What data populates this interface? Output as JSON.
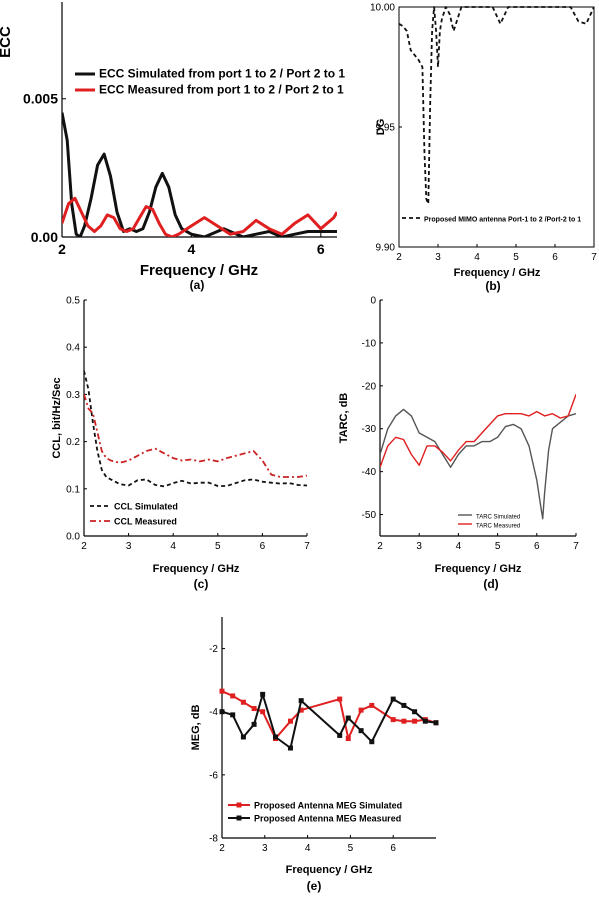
{
  "colors": {
    "black": "#111111",
    "red": "#e02020",
    "gray": "#555555",
    "dashred": "#cc2222"
  },
  "panels": {
    "a": {
      "label": "(a)"
    },
    "b": {
      "label": "(b)"
    },
    "c": {
      "label": "(c)"
    },
    "d": {
      "label": "(d)"
    },
    "e": {
      "label": "(e)"
    }
  },
  "chart_data": [
    {
      "type": "line",
      "ylabel": "ECC",
      "xlabel": "Frequency / GHz",
      "xlim": [
        2,
        6.25
      ],
      "ylim": [
        0,
        0.0085
      ],
      "xticks": [
        "2",
        "4",
        "6"
      ],
      "yticks": [
        "0.00",
        "0.005"
      ],
      "legend_placement": "top-right",
      "series": [
        {
          "name": "ECC Simulated from port 1 to 2 / Port 2 to 1",
          "color": "black",
          "x": [
            2.0,
            2.08,
            2.15,
            2.22,
            2.28,
            2.35,
            2.45,
            2.55,
            2.65,
            2.75,
            2.85,
            2.95,
            3.05,
            3.15,
            3.25,
            3.35,
            3.45,
            3.55,
            3.65,
            3.75,
            3.85,
            4.0,
            4.2,
            4.4,
            4.5,
            4.6,
            4.8,
            5.0,
            5.2,
            5.4,
            5.6,
            5.8,
            6.0,
            6.25
          ],
          "y": [
            0.0045,
            0.0035,
            0.0012,
            0.0001,
            0.0,
            0.0004,
            0.0014,
            0.0026,
            0.003,
            0.0022,
            0.0009,
            0.0002,
            0.0003,
            0.0002,
            0.0003,
            0.0009,
            0.0018,
            0.0023,
            0.0018,
            0.0008,
            0.0003,
            0.0001,
            0.0,
            0.0002,
            0.0003,
            0.0002,
            0.0,
            0.0001,
            0.0002,
            0.0,
            0.0001,
            0.0002,
            0.0002,
            0.0002
          ]
        },
        {
          "name": "ECC Measured from port 1 to 2 / Port 2 to 1",
          "color": "red",
          "x": [
            2.0,
            2.1,
            2.2,
            2.3,
            2.4,
            2.5,
            2.6,
            2.7,
            2.8,
            2.9,
            3.0,
            3.1,
            3.2,
            3.3,
            3.4,
            3.5,
            3.6,
            3.7,
            3.8,
            4.0,
            4.2,
            4.4,
            4.6,
            4.8,
            5.0,
            5.2,
            5.4,
            5.6,
            5.8,
            6.0,
            6.2,
            6.25
          ],
          "y": [
            0.0005,
            0.0012,
            0.0014,
            0.0009,
            0.0004,
            0.0002,
            0.0004,
            0.0008,
            0.0007,
            0.0003,
            0.0002,
            0.0003,
            0.0007,
            0.0011,
            0.001,
            0.0005,
            0.0001,
            0.0,
            0.0001,
            0.0004,
            0.0007,
            0.0004,
            0.0001,
            0.0002,
            0.0006,
            0.0003,
            0.0001,
            0.0005,
            0.0008,
            0.0003,
            0.0007,
            0.0009
          ]
        }
      ]
    },
    {
      "type": "line",
      "ylabel": "DG",
      "xlabel": "Frequency / GHz",
      "xlim": [
        2,
        7
      ],
      "ylim": [
        9.9,
        10.0
      ],
      "xticks": [
        "2",
        "3",
        "4",
        "5",
        "6",
        "7"
      ],
      "yticks": [
        "9.90",
        "9.95",
        "10.00"
      ],
      "legend_placement": "bottom-right",
      "series": [
        {
          "name": "Proposed MIMO antenna Port-1 to 2 /Port-2 to 1",
          "color": "black",
          "style": "dashed",
          "x": [
            2.0,
            2.1,
            2.2,
            2.3,
            2.4,
            2.5,
            2.6,
            2.65,
            2.7,
            2.75,
            2.8,
            2.85,
            2.9,
            2.95,
            3.0,
            3.05,
            3.1,
            3.2,
            3.3,
            3.4,
            3.6,
            3.8,
            4.0,
            4.2,
            4.4,
            4.6,
            4.8,
            5.0,
            5.2,
            5.4,
            5.6,
            5.8,
            6.0,
            6.2,
            6.4,
            6.6,
            6.8,
            7.0
          ],
          "y": [
            9.993,
            9.992,
            9.99,
            9.982,
            9.98,
            9.978,
            9.975,
            9.94,
            9.92,
            9.918,
            9.96,
            9.99,
            10.0,
            9.99,
            9.975,
            9.99,
            9.995,
            10.0,
            9.997,
            9.99,
            10.0,
            10.0,
            10.0,
            10.0,
            10.0,
            9.993,
            10.0,
            10.0,
            10.0,
            10.0,
            10.0,
            10.0,
            10.0,
            10.0,
            10.0,
            9.994,
            9.993,
            10.0
          ]
        }
      ]
    },
    {
      "type": "line",
      "ylabel": "CCL, bit/Hz/Sec",
      "xlabel": "Frequency / GHz",
      "xlim": [
        2,
        7
      ],
      "ylim": [
        0,
        0.5
      ],
      "xticks": [
        "2",
        "3",
        "4",
        "5",
        "6",
        "7"
      ],
      "yticks": [
        "0.0",
        "0.1",
        "0.2",
        "0.3",
        "0.4",
        "0.5"
      ],
      "legend_placement": "bottom-left",
      "series": [
        {
          "name": "CCL Simulated",
          "color": "black",
          "style": "dashed",
          "x": [
            2.0,
            2.1,
            2.2,
            2.3,
            2.4,
            2.5,
            2.6,
            2.8,
            3.0,
            3.2,
            3.4,
            3.6,
            3.8,
            4.0,
            4.2,
            4.4,
            4.6,
            4.8,
            5.0,
            5.2,
            5.4,
            5.6,
            5.8,
            6.0,
            6.2,
            6.4,
            6.6,
            6.8,
            7.0
          ],
          "y": [
            0.35,
            0.31,
            0.24,
            0.18,
            0.14,
            0.125,
            0.12,
            0.11,
            0.107,
            0.118,
            0.12,
            0.108,
            0.105,
            0.112,
            0.117,
            0.111,
            0.113,
            0.113,
            0.106,
            0.106,
            0.112,
            0.118,
            0.12,
            0.115,
            0.113,
            0.111,
            0.112,
            0.108,
            0.107
          ]
        },
        {
          "name": "CCL Measured",
          "color": "dashred",
          "style": "dashdot",
          "x": [
            2.0,
            2.1,
            2.2,
            2.3,
            2.4,
            2.5,
            2.6,
            2.8,
            3.0,
            3.2,
            3.4,
            3.6,
            3.8,
            4.0,
            4.2,
            4.4,
            4.6,
            4.8,
            5.0,
            5.2,
            5.4,
            5.6,
            5.8,
            6.0,
            6.2,
            6.4,
            6.6,
            6.8,
            7.0
          ],
          "y": [
            0.3,
            0.27,
            0.26,
            0.22,
            0.18,
            0.165,
            0.16,
            0.155,
            0.16,
            0.17,
            0.18,
            0.185,
            0.175,
            0.165,
            0.16,
            0.162,
            0.158,
            0.162,
            0.158,
            0.165,
            0.17,
            0.175,
            0.18,
            0.16,
            0.13,
            0.125,
            0.125,
            0.125,
            0.128
          ]
        }
      ]
    },
    {
      "type": "line",
      "ylabel": "TARC, dB",
      "xlabel": "Frequency / GHz",
      "xlim": [
        2,
        7
      ],
      "ylim": [
        -55,
        0
      ],
      "xticks": [
        "2",
        "3",
        "4",
        "5",
        "6",
        "7"
      ],
      "yticks": [
        "0",
        "-10",
        "-20",
        "-30",
        "-40",
        "-50"
      ],
      "legend_placement": "bottom-center",
      "series": [
        {
          "name": "TARC Simulated",
          "color": "gray",
          "x": [
            2.0,
            2.2,
            2.4,
            2.6,
            2.8,
            3.0,
            3.2,
            3.4,
            3.6,
            3.8,
            4.0,
            4.2,
            4.4,
            4.6,
            4.8,
            5.0,
            5.2,
            5.4,
            5.6,
            5.8,
            5.9,
            6.0,
            6.1,
            6.15,
            6.2,
            6.3,
            6.4,
            6.6,
            6.8,
            7.0
          ],
          "y": [
            -36,
            -30,
            -27,
            -25.5,
            -27,
            -31,
            -32,
            -33,
            -36,
            -39,
            -36,
            -34,
            -34,
            -33,
            -33,
            -32,
            -29.5,
            -29,
            -30,
            -34,
            -38,
            -42,
            -48,
            -51,
            -45,
            -35,
            -30,
            -28.5,
            -27,
            -26.5
          ]
        },
        {
          "name": "TARC Measured",
          "color": "red",
          "x": [
            2.0,
            2.2,
            2.4,
            2.6,
            2.8,
            3.0,
            3.2,
            3.4,
            3.6,
            3.8,
            4.0,
            4.2,
            4.4,
            4.6,
            4.8,
            5.0,
            5.2,
            5.4,
            5.6,
            5.8,
            6.0,
            6.2,
            6.4,
            6.6,
            6.8,
            7.0
          ],
          "y": [
            -39,
            -34,
            -32,
            -32.5,
            -36,
            -38.5,
            -34,
            -34,
            -35.5,
            -37.5,
            -35,
            -33,
            -33,
            -31,
            -29,
            -27,
            -26.5,
            -26.5,
            -26.5,
            -27,
            -26,
            -27,
            -26.5,
            -27.5,
            -27,
            -22
          ]
        }
      ]
    },
    {
      "type": "line",
      "ylabel": "MEG, dB",
      "xlabel": "Frequency / GHz",
      "xlim": [
        2,
        7
      ],
      "ylim": [
        -8,
        -1
      ],
      "xticks": [
        "2",
        "3",
        "4",
        "5",
        "6"
      ],
      "yticks": [
        "-2",
        "-4",
        "-6",
        "-8"
      ],
      "legend_placement": "bottom-center",
      "series": [
        {
          "name": "Proposed Antenna MEG Simulated",
          "color": "red",
          "marker": "square",
          "x": [
            2.0,
            2.25,
            2.5,
            2.75,
            2.95,
            3.25,
            3.6,
            3.85,
            4.75,
            4.95,
            5.25,
            5.5,
            6.0,
            6.25,
            6.5,
            6.75,
            7.0
          ],
          "y": [
            -3.35,
            -3.5,
            -3.7,
            -3.9,
            -4.0,
            -4.85,
            -4.3,
            -3.95,
            -3.6,
            -4.85,
            -3.95,
            -3.8,
            -4.25,
            -4.3,
            -4.3,
            -4.25,
            -4.35
          ]
        },
        {
          "name": "Proposed Antenna MEG Measured",
          "color": "black",
          "marker": "square",
          "x": [
            2.0,
            2.25,
            2.5,
            2.75,
            2.95,
            3.25,
            3.6,
            3.85,
            4.75,
            4.95,
            5.25,
            5.5,
            6.0,
            6.25,
            6.5,
            6.75,
            7.0
          ],
          "y": [
            -4.0,
            -4.1,
            -4.8,
            -4.4,
            -3.45,
            -4.8,
            -5.15,
            -3.65,
            -4.75,
            -4.2,
            -4.6,
            -4.95,
            -3.6,
            -3.8,
            -4.0,
            -4.3,
            -4.35
          ]
        }
      ]
    }
  ]
}
